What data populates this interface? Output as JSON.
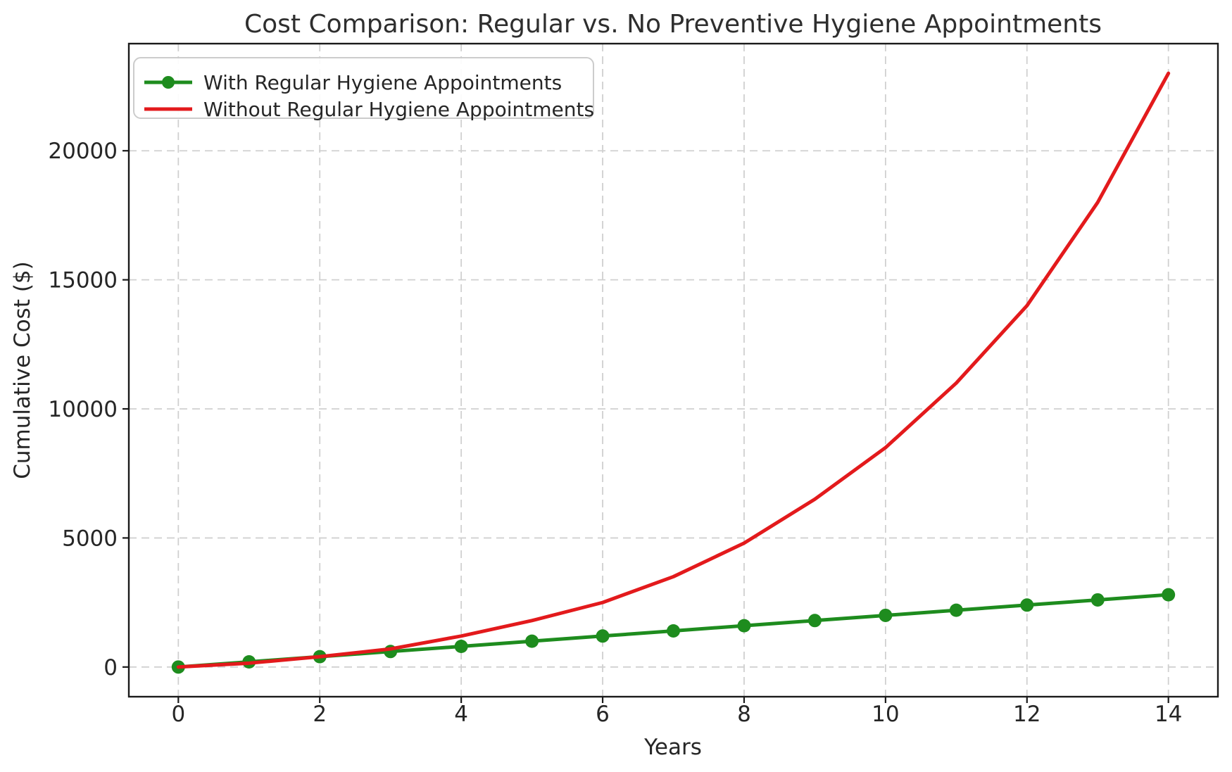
{
  "title": "Cost Comparison: Regular vs. No Preventive Hygiene Appointments",
  "chart_data": {
    "type": "line",
    "title": "Cost Comparison: Regular vs. No Preventive Hygiene Appointments",
    "xlabel": "Years",
    "ylabel": "Cumulative Cost ($)",
    "x": [
      0,
      1,
      2,
      3,
      4,
      5,
      6,
      7,
      8,
      9,
      10,
      11,
      12,
      13,
      14
    ],
    "series": [
      {
        "name": "With Regular Hygiene Appointments",
        "color": "#1e8c1e",
        "marker": "circle",
        "line_width": 5,
        "values": [
          0,
          200,
          400,
          600,
          800,
          1000,
          1200,
          1400,
          1600,
          1800,
          2000,
          2200,
          2400,
          2600,
          2800
        ]
      },
      {
        "name": "Without Regular Hygiene Appointments",
        "color": "#e31a1c",
        "marker": "none",
        "line_width": 5,
        "values": [
          0,
          150,
          400,
          700,
          1200,
          1800,
          2500,
          3500,
          4800,
          6500,
          8500,
          11000,
          14000,
          18000,
          23000
        ]
      }
    ],
    "xticks": [
      0,
      2,
      4,
      6,
      8,
      10,
      12,
      14
    ],
    "yticks": [
      0,
      5000,
      10000,
      15000,
      20000
    ],
    "xlim": [
      -0.7,
      14.7
    ],
    "ylim": [
      -1150,
      24150
    ],
    "grid": true,
    "grid_style": "dashed",
    "legend_position": "upper left"
  }
}
